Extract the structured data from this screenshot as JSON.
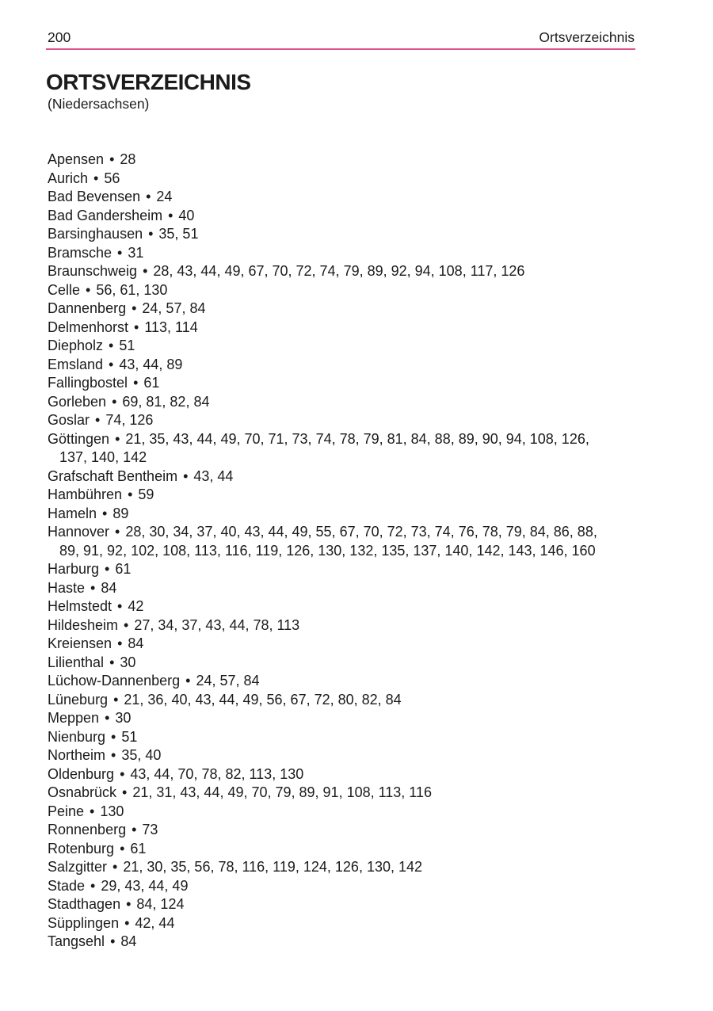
{
  "header": {
    "page_number": "200",
    "section_title": "Ortsverzeichnis"
  },
  "title": {
    "heading": "ORTSVERZEICHNIS",
    "subtitle": "(Niedersachsen)"
  },
  "colors": {
    "rule": "#e0548c",
    "text": "#1b1b1b"
  },
  "index": {
    "bullet": "•",
    "entries": [
      {
        "name": "Apensen",
        "pages": [
          28
        ]
      },
      {
        "name": "Aurich",
        "pages": [
          56
        ]
      },
      {
        "name": "Bad Bevensen",
        "pages": [
          24
        ]
      },
      {
        "name": "Bad Gandersheim",
        "pages": [
          40
        ]
      },
      {
        "name": "Barsinghausen",
        "pages": [
          35,
          51
        ]
      },
      {
        "name": "Bramsche",
        "pages": [
          31
        ]
      },
      {
        "name": "Braunschweig",
        "pages": [
          28,
          43,
          44,
          49,
          67,
          70,
          72,
          74,
          79,
          89,
          92,
          94,
          108,
          117,
          126
        ]
      },
      {
        "name": "Celle",
        "pages": [
          56,
          61,
          130
        ]
      },
      {
        "name": "Dannenberg",
        "pages": [
          24,
          57,
          84
        ]
      },
      {
        "name": "Delmenhorst",
        "pages": [
          113,
          114
        ]
      },
      {
        "name": "Diepholz",
        "pages": [
          51
        ]
      },
      {
        "name": "Emsland",
        "pages": [
          43,
          44,
          89
        ]
      },
      {
        "name": "Fallingbostel",
        "pages": [
          61
        ]
      },
      {
        "name": "Gorleben",
        "pages": [
          69,
          81,
          82,
          84
        ]
      },
      {
        "name": "Goslar",
        "pages": [
          74,
          126
        ]
      },
      {
        "name": "Göttingen",
        "pages": [
          21,
          35,
          43,
          44,
          49,
          70,
          71,
          73,
          74,
          78,
          79,
          81,
          84,
          88,
          89,
          90,
          94,
          108,
          126,
          137,
          140,
          142
        ]
      },
      {
        "name": "Grafschaft Bentheim",
        "pages": [
          43,
          44
        ]
      },
      {
        "name": "Hambühren",
        "pages": [
          59
        ]
      },
      {
        "name": "Hameln",
        "pages": [
          89
        ]
      },
      {
        "name": "Hannover",
        "pages": [
          28,
          30,
          34,
          37,
          40,
          43,
          44,
          49,
          55,
          67,
          70,
          72,
          73,
          74,
          76,
          78,
          79,
          84,
          86,
          88,
          89,
          91,
          92,
          102,
          108,
          113,
          116,
          119,
          126,
          130,
          132,
          135,
          137,
          140,
          142,
          143,
          146,
          160
        ]
      },
      {
        "name": "Harburg",
        "pages": [
          61
        ]
      },
      {
        "name": "Haste",
        "pages": [
          84
        ]
      },
      {
        "name": "Helmstedt",
        "pages": [
          42
        ]
      },
      {
        "name": "Hildesheim",
        "pages": [
          27,
          34,
          37,
          43,
          44,
          78,
          113
        ]
      },
      {
        "name": "Kreiensen",
        "pages": [
          84
        ]
      },
      {
        "name": "Lilienthal",
        "pages": [
          30
        ]
      },
      {
        "name": "Lüchow-Dannenberg",
        "pages": [
          24,
          57,
          84
        ]
      },
      {
        "name": "Lüneburg",
        "pages": [
          21,
          36,
          40,
          43,
          44,
          49,
          56,
          67,
          72,
          80,
          82,
          84
        ]
      },
      {
        "name": "Meppen",
        "pages": [
          30
        ]
      },
      {
        "name": "Nienburg",
        "pages": [
          51
        ]
      },
      {
        "name": "Northeim",
        "pages": [
          35,
          40
        ]
      },
      {
        "name": "Oldenburg",
        "pages": [
          43,
          44,
          70,
          78,
          82,
          113,
          130
        ]
      },
      {
        "name": "Osnabrück",
        "pages": [
          21,
          31,
          43,
          44,
          49,
          70,
          79,
          89,
          91,
          108,
          113,
          116
        ]
      },
      {
        "name": "Peine",
        "pages": [
          130
        ]
      },
      {
        "name": "Ronnenberg",
        "pages": [
          73
        ]
      },
      {
        "name": "Rotenburg",
        "pages": [
          61
        ]
      },
      {
        "name": "Salzgitter",
        "pages": [
          21,
          30,
          35,
          56,
          78,
          116,
          119,
          124,
          126,
          130,
          142
        ]
      },
      {
        "name": "Stade",
        "pages": [
          29,
          43,
          44,
          49
        ]
      },
      {
        "name": "Stadthagen",
        "pages": [
          84,
          124
        ]
      },
      {
        "name": "Süpplingen",
        "pages": [
          42,
          44
        ]
      },
      {
        "name": "Tangsehl",
        "pages": [
          84
        ]
      }
    ]
  }
}
